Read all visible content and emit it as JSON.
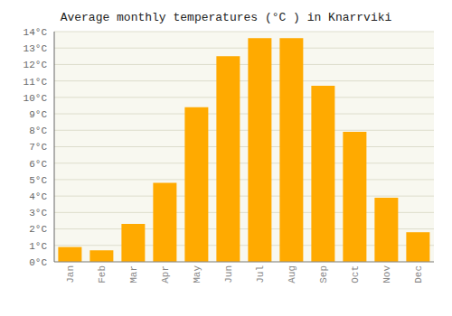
{
  "chart_data": {
    "type": "bar",
    "title": "Average monthly temperatures (°C ) in Knarrviki",
    "categories": [
      "Jan",
      "Feb",
      "Mar",
      "Apr",
      "May",
      "Jun",
      "Jul",
      "Aug",
      "Sep",
      "Oct",
      "Nov",
      "Dec"
    ],
    "values": [
      0.9,
      0.7,
      2.3,
      4.8,
      9.4,
      12.5,
      13.6,
      13.6,
      10.7,
      7.9,
      3.9,
      1.8
    ],
    "color": "#FFAA00",
    "ylim": [
      0,
      14
    ],
    "yticks": [
      {
        "value": 0,
        "label": "0°C"
      },
      {
        "value": 1,
        "label": "1°C"
      },
      {
        "value": 2,
        "label": "2°C"
      },
      {
        "value": 3,
        "label": "3°C"
      },
      {
        "value": 4,
        "label": "4°C"
      },
      {
        "value": 5,
        "label": "5°C"
      },
      {
        "value": 6,
        "label": "6°C"
      },
      {
        "value": 7,
        "label": "7°C"
      },
      {
        "value": 8,
        "label": "8°C"
      },
      {
        "value": 9,
        "label": "9°C"
      },
      {
        "value": 10,
        "label": "10°C"
      },
      {
        "value": 11,
        "label": "11°C"
      },
      {
        "value": 12,
        "label": "12°C"
      },
      {
        "value": 13,
        "label": "13°C"
      },
      {
        "value": 14,
        "label": "14°C"
      }
    ],
    "grid": true
  }
}
